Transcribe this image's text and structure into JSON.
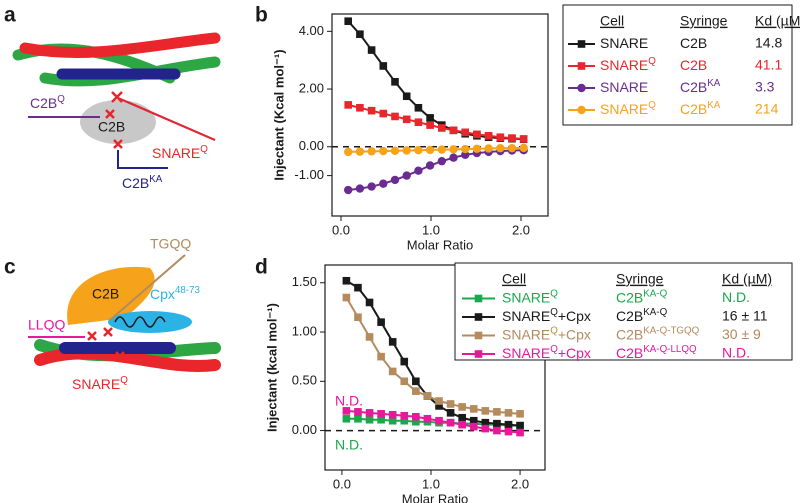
{
  "panels": {
    "a": "a",
    "b": "b",
    "c": "c",
    "d": "d"
  },
  "diagram_a": {
    "c2b": "C2B",
    "c2bq": [
      "C2B",
      "Q"
    ],
    "snareq": [
      "SNARE",
      "Q"
    ],
    "c2bka": [
      "C2B",
      "KA"
    ]
  },
  "diagram_c": {
    "c2b": "C2B",
    "tgqq": "TGQQ",
    "llqq": "LLQQ",
    "cpx": [
      "Cpx",
      "48-73"
    ],
    "snareq": [
      "SNARE",
      "Q"
    ]
  },
  "chart_data": [
    {
      "type": "line",
      "xlabel": "Molar Ratio",
      "ylabel": "Injectant (Kcal mol⁻¹)",
      "xlim": [
        -0.1,
        2.3
      ],
      "ylim": [
        -2.4,
        4.6
      ],
      "xticks": [
        {
          "value": 0,
          "label": "0.0"
        },
        {
          "value": 1,
          "label": "1.0"
        },
        {
          "value": 2,
          "label": "2.0"
        }
      ],
      "yticks": [
        {
          "value": 4,
          "label": "4.00"
        },
        {
          "value": 2,
          "label": "2.00"
        },
        {
          "value": 0,
          "label": "0.00"
        },
        {
          "value": -1,
          "label": "-1.00"
        }
      ],
      "hlines": [
        0
      ],
      "legend_columns": [
        "Cell",
        "Syringe",
        "Kd (µM)"
      ],
      "x": [
        0.08,
        0.21,
        0.34,
        0.47,
        0.6,
        0.73,
        0.86,
        0.99,
        1.12,
        1.25,
        1.38,
        1.51,
        1.64,
        1.77,
        1.9,
        2.03
      ],
      "series": [
        {
          "name": [
            "SNARE"
          ],
          "syringe": [
            "C2B"
          ],
          "kd": "14.8",
          "color": "#1a1a1a",
          "marker": "square",
          "values": [
            4.35,
            3.9,
            3.35,
            2.8,
            2.25,
            1.75,
            1.35,
            1.0,
            0.75,
            0.57,
            0.45,
            0.38,
            0.33,
            0.3,
            0.28,
            0.26
          ]
        },
        {
          "name": [
            "SNARE",
            "Q"
          ],
          "syringe": [
            "C2B"
          ],
          "kd": "41.1",
          "color": "#e8262b",
          "marker": "square",
          "values": [
            1.45,
            1.35,
            1.25,
            1.15,
            1.05,
            0.95,
            0.85,
            0.75,
            0.65,
            0.57,
            0.5,
            0.43,
            0.38,
            0.33,
            0.3,
            0.27
          ]
        },
        {
          "name": [
            "SNARE"
          ],
          "syringe": [
            "C2B",
            "KA"
          ],
          "kd": "3.3",
          "color": "#6a2c91",
          "marker": "circle",
          "values": [
            -1.5,
            -1.45,
            -1.38,
            -1.28,
            -1.15,
            -1.0,
            -0.83,
            -0.65,
            -0.5,
            -0.38,
            -0.28,
            -0.22,
            -0.18,
            -0.15,
            -0.13,
            -0.12
          ]
        },
        {
          "name": [
            "SNARE",
            "Q"
          ],
          "syringe": [
            "C2B",
            "KA"
          ],
          "kd": "214",
          "color": "#f7a21b",
          "marker": "circle",
          "values": [
            -0.18,
            -0.17,
            -0.16,
            -0.15,
            -0.14,
            -0.13,
            -0.12,
            -0.11,
            -0.1,
            -0.09,
            -0.08,
            -0.07,
            -0.06,
            -0.05,
            -0.05,
            -0.04
          ]
        }
      ]
    },
    {
      "type": "line",
      "xlabel": "Molar Ratio",
      "ylabel": "Injectant (kcal mol⁻¹)",
      "xlim": [
        -0.19,
        2.28
      ],
      "ylim": [
        -0.4,
        1.68
      ],
      "xticks": [
        {
          "value": 0,
          "label": "0.0"
        },
        {
          "value": 1,
          "label": "1.0"
        },
        {
          "value": 2,
          "label": "2.0"
        }
      ],
      "yticks": [
        {
          "value": 1.5,
          "label": "1.50"
        },
        {
          "value": 1,
          "label": "1.00"
        },
        {
          "value": 0.5,
          "label": "0.50"
        },
        {
          "value": 0,
          "label": "0.00"
        }
      ],
      "hlines": [
        0
      ],
      "legend_columns": [
        "Cell",
        "Syringe",
        "Kd (µM)"
      ],
      "annotations": [
        {
          "text": "N.D.",
          "color": "#e6199b"
        },
        {
          "text": "N.D.",
          "color": "#1aa84b"
        }
      ],
      "x": [
        0.05,
        0.18,
        0.31,
        0.44,
        0.57,
        0.7,
        0.83,
        0.96,
        1.09,
        1.22,
        1.35,
        1.48,
        1.61,
        1.74,
        1.87,
        2.0
      ],
      "series": [
        {
          "name": [
            "SNARE",
            "Q"
          ],
          "syringe": [
            "C2B",
            "KA-Q"
          ],
          "kd": "N.D.",
          "color": "#1aa84b",
          "marker": "square",
          "values": [
            0.12,
            0.12,
            0.11,
            0.11,
            0.1,
            0.1,
            0.09,
            0.09,
            0.08,
            0.08,
            0.07,
            0.07,
            0.06,
            0.06,
            0.05,
            0.05
          ]
        },
        {
          "name": [
            "SNARE",
            "Q",
            "+Cpx"
          ],
          "syringe": [
            "C2B",
            "KA-Q"
          ],
          "kd": "16 ± 11",
          "color": "#1a1a1a",
          "marker": "square",
          "values": [
            1.52,
            1.45,
            1.3,
            1.1,
            0.9,
            0.7,
            0.5,
            0.35,
            0.25,
            0.18,
            0.13,
            0.1,
            0.08,
            0.07,
            0.06,
            0.05
          ]
        },
        {
          "name": [
            "SNARE",
            "Q",
            "+Cpx"
          ],
          "syringe": [
            "C2B",
            "KA-Q-TGQQ"
          ],
          "kd": "30 ± 9",
          "color": "#b38b5d",
          "marker": "square",
          "values": [
            1.35,
            1.15,
            0.95,
            0.75,
            0.6,
            0.5,
            0.4,
            0.35,
            0.3,
            0.27,
            0.24,
            0.22,
            0.2,
            0.19,
            0.18,
            0.17
          ]
        },
        {
          "name": [
            "SNARE",
            "Q",
            "+Cpx"
          ],
          "syringe": [
            "C2B",
            "KA-Q-LLQQ"
          ],
          "kd": "N.D.",
          "color": "#e6199b",
          "marker": "square",
          "values": [
            0.2,
            0.19,
            0.18,
            0.17,
            0.16,
            0.15,
            0.14,
            0.12,
            0.1,
            0.08,
            0.06,
            0.04,
            0.02,
            0.0,
            -0.01,
            -0.02
          ]
        }
      ]
    }
  ]
}
